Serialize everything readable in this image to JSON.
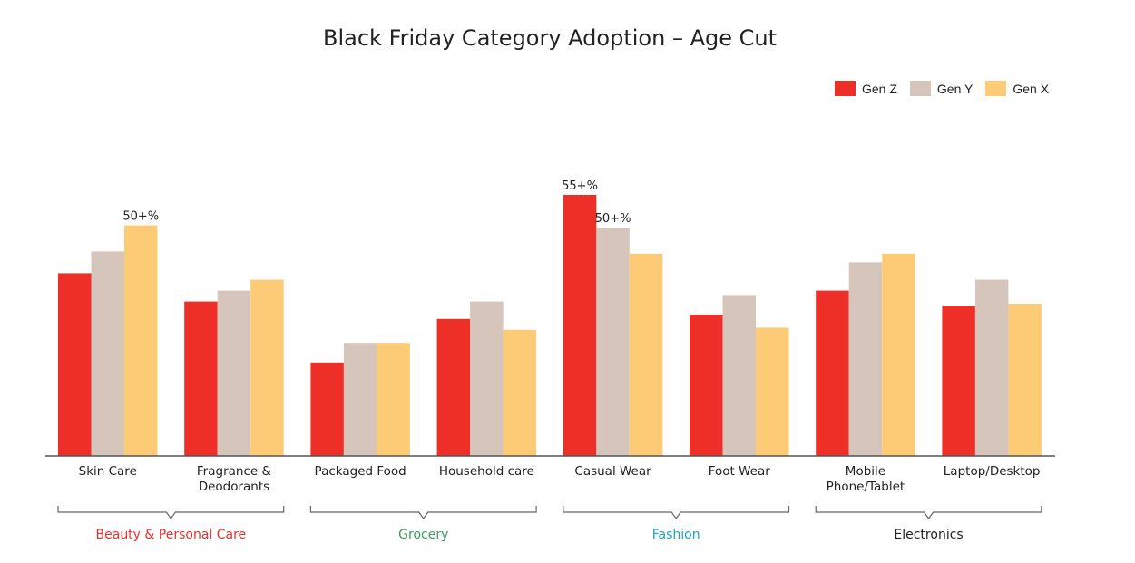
{
  "chart_data": {
    "type": "bar",
    "title": "Black Friday Category Adoption – Age Cut",
    "xlabel": "",
    "ylabel": "",
    "ylim": [
      0,
      60
    ],
    "grid": false,
    "legend_position": "top-right",
    "categories": [
      "Skin Care",
      "Fragrance & Deodorants",
      "Packaged Food",
      "Household care",
      "Casual Wear",
      "Foot Wear",
      "Mobile Phone/Tablet",
      "Laptop/Desktop"
    ],
    "category_lines": [
      [
        "Skin Care"
      ],
      [
        "Fragrance &",
        "Deodorants"
      ],
      [
        "Packaged Food"
      ],
      [
        "Household care"
      ],
      [
        "Casual Wear"
      ],
      [
        "Foot Wear"
      ],
      [
        "Mobile",
        "Phone/Tablet"
      ],
      [
        "Laptop/Desktop"
      ]
    ],
    "series": [
      {
        "name": "Gen Z",
        "color": "#ed2f28",
        "values": [
          42,
          35.5,
          21.5,
          31.5,
          60,
          32.5,
          38,
          34.5
        ]
      },
      {
        "name": "Gen Y",
        "color": "#d6c5bb",
        "values": [
          47,
          38,
          26,
          35.5,
          52.5,
          37,
          44.5,
          40.5
        ]
      },
      {
        "name": "Gen X",
        "color": "#fdcb75",
        "values": [
          53,
          40.5,
          26,
          29,
          46.5,
          29.5,
          46.5,
          35
        ]
      }
    ],
    "annotations": [
      {
        "category": 0,
        "series": 2,
        "text": "50+%"
      },
      {
        "category": 4,
        "series": 0,
        "text": "55+%"
      },
      {
        "category": 4,
        "series": 1,
        "text": "50+%"
      }
    ],
    "groups": [
      {
        "label": "Beauty & Personal Care",
        "color": "#ed2f28",
        "from": 0,
        "to": 1
      },
      {
        "label": "Grocery",
        "color": "#3a9d5d",
        "from": 2,
        "to": 3
      },
      {
        "label": "Fashion",
        "color": "#1aa3c4",
        "from": 4,
        "to": 5
      },
      {
        "label": "Electronics",
        "color": "#222222",
        "from": 6,
        "to": 7
      }
    ]
  }
}
